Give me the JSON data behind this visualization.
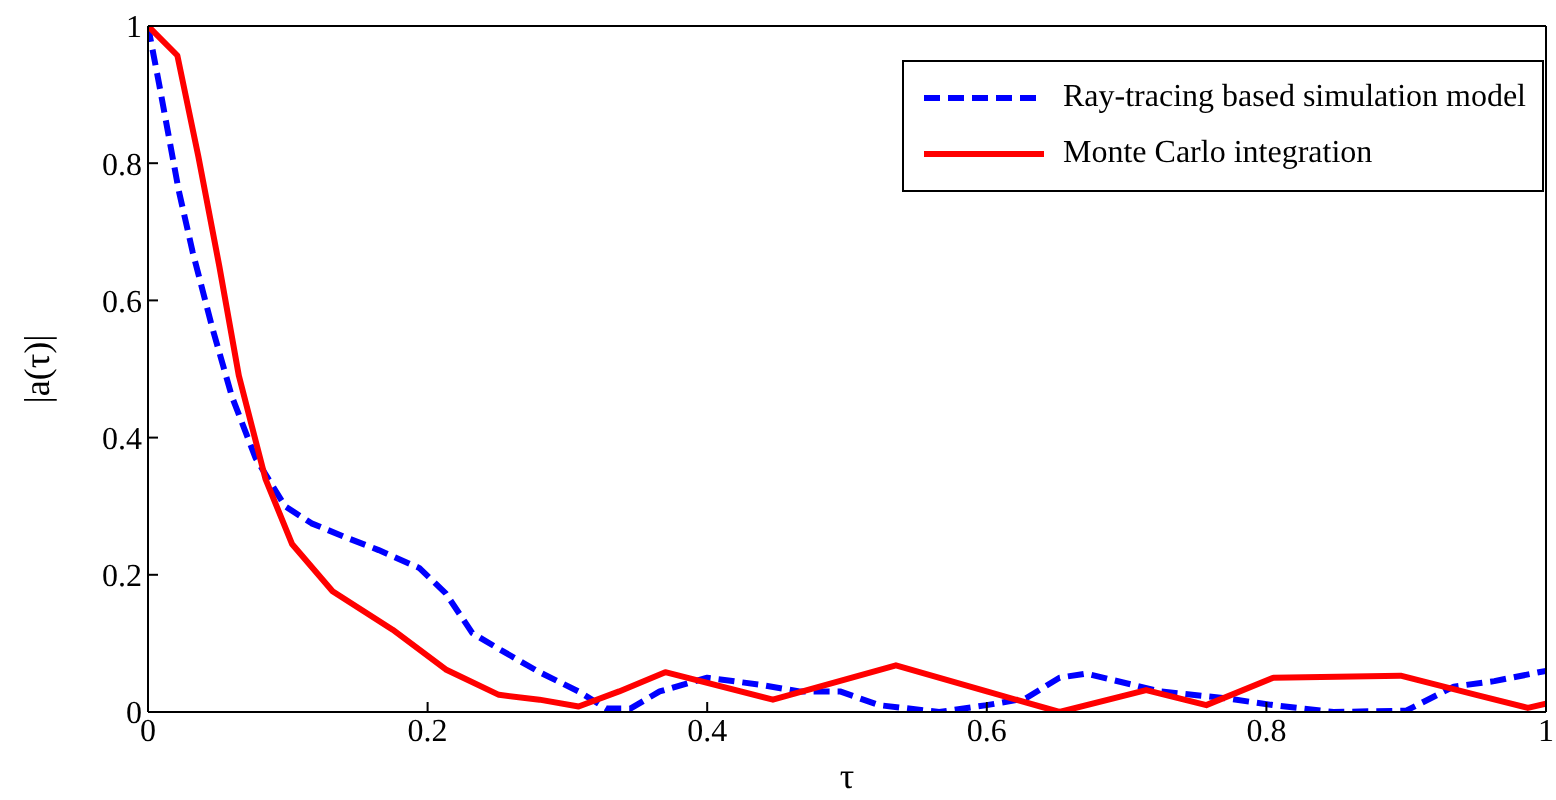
{
  "chart_data": {
    "type": "line",
    "xlabel": "τ",
    "ylabel": "|a(τ)|",
    "xlim": [
      0,
      1
    ],
    "ylim": [
      0,
      1
    ],
    "xticks": [
      0,
      0.2,
      0.4,
      0.6,
      0.8,
      1
    ],
    "yticks": [
      0,
      0.2,
      0.4,
      0.6,
      0.8,
      1
    ],
    "legend": "top right",
    "marker": "none",
    "series": [
      {
        "name": "Ray-tracing based simulation model",
        "color": "#0000ff",
        "line_style": "dashed",
        "x": [
          0,
          0.008,
          0.022,
          0.032,
          0.046,
          0.06,
          0.077,
          0.098,
          0.117,
          0.141,
          0.165,
          0.194,
          0.213,
          0.232,
          0.251,
          0.28,
          0.308,
          0.328,
          0.345,
          0.366,
          0.4,
          0.437,
          0.466,
          0.495,
          0.523,
          0.566,
          0.6,
          0.628,
          0.652,
          0.671,
          0.724,
          0.771,
          0.805,
          0.848,
          0.9,
          0.934,
          0.963,
          1
        ],
        "values": [
          1,
          0.915,
          0.76,
          0.67,
          0.56,
          0.46,
          0.37,
          0.3,
          0.275,
          0.255,
          0.236,
          0.21,
          0.173,
          0.115,
          0.092,
          0.058,
          0.03,
          0.005,
          0.005,
          0.03,
          0.05,
          0.04,
          0.03,
          0.03,
          0.01,
          0,
          0.01,
          0.02,
          0.05,
          0.056,
          0.03,
          0.02,
          0.01,
          0,
          0.002,
          0.037,
          0.045,
          0.06
        ]
      },
      {
        "name": "Monte Carlo integration",
        "color": "#ff0000",
        "line_style": "solid",
        "x": [
          0,
          0.021,
          0.036,
          0.051,
          0.065,
          0.084,
          0.103,
          0.132,
          0.175,
          0.213,
          0.251,
          0.28,
          0.308,
          0.337,
          0.37,
          0.447,
          0.535,
          0.6,
          0.652,
          0.714,
          0.757,
          0.805,
          0.896,
          0.95,
          0.987,
          1
        ],
        "values": [
          1,
          0.957,
          0.81,
          0.65,
          0.49,
          0.34,
          0.245,
          0.176,
          0.12,
          0.062,
          0.025,
          0.018,
          0.008,
          0.03,
          0.058,
          0.018,
          0.068,
          0.03,
          0,
          0.032,
          0.01,
          0.05,
          0.053,
          0.025,
          0.006,
          0.012
        ]
      }
    ]
  }
}
